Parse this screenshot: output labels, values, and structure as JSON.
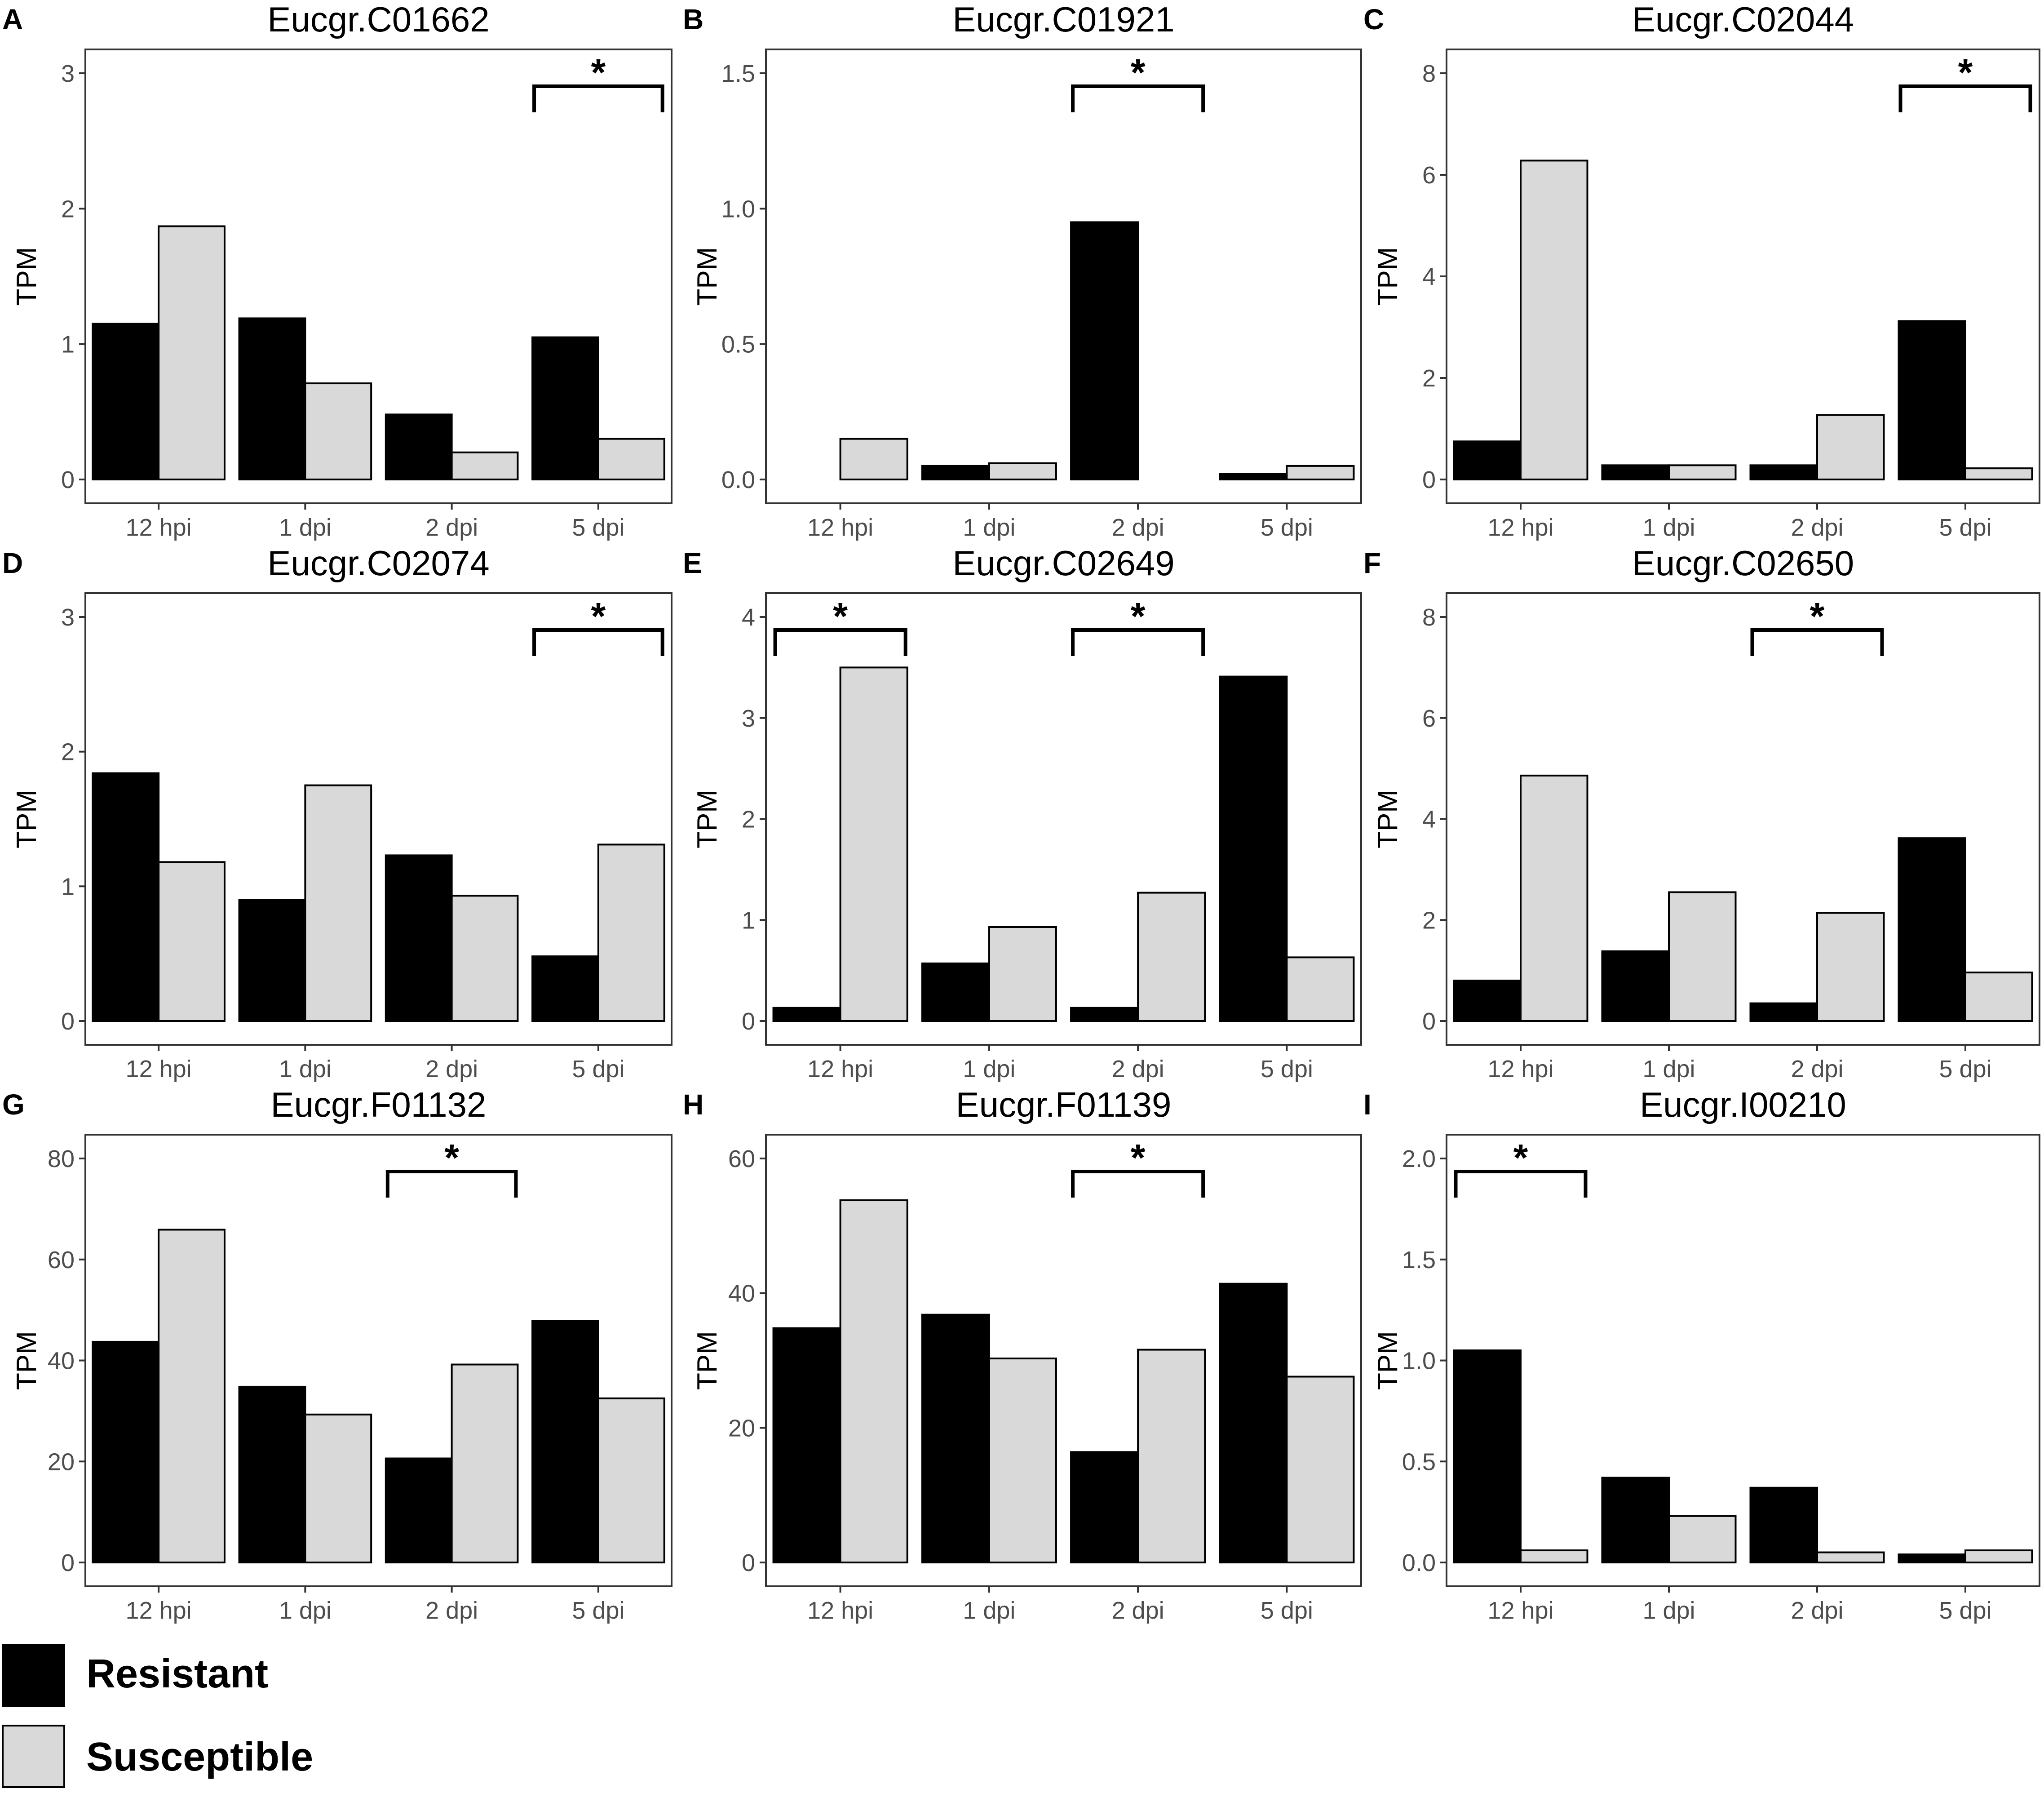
{
  "legend": {
    "items": [
      {
        "label": "Resistant",
        "color": "#000000"
      },
      {
        "label": "Susceptible",
        "color": "#d9d9d9"
      }
    ]
  },
  "chart_data": [
    {
      "panel": "A",
      "type": "bar",
      "title": "Eucgr.C01662",
      "ylabel": "TPM",
      "categories": [
        "12 hpi",
        "1 dpi",
        "2 dpi",
        "5 dpi"
      ],
      "ylim": [
        0,
        3
      ],
      "yticks": [
        "0",
        "1",
        "2",
        "3"
      ],
      "series": [
        {
          "name": "Resistant",
          "values": [
            1.15,
            1.19,
            0.48,
            1.05
          ]
        },
        {
          "name": "Susceptible",
          "values": [
            1.87,
            0.71,
            0.2,
            0.3
          ]
        }
      ],
      "significant": [
        3
      ],
      "significance_label": "*"
    },
    {
      "panel": "B",
      "type": "bar",
      "title": "Eucgr.C01921",
      "ylabel": "TPM",
      "categories": [
        "12 hpi",
        "1 dpi",
        "2 dpi",
        "5 dpi"
      ],
      "ylim": [
        0,
        1.5
      ],
      "yticks": [
        "0.0",
        "0.5",
        "1.0",
        "1.5"
      ],
      "series": [
        {
          "name": "Resistant",
          "values": [
            0.0,
            0.05,
            0.95,
            0.02
          ]
        },
        {
          "name": "Susceptible",
          "values": [
            0.15,
            0.06,
            0.0,
            0.05
          ]
        }
      ],
      "significant": [
        2
      ],
      "significance_label": "*"
    },
    {
      "panel": "C",
      "type": "bar",
      "title": "Eucgr.C02044",
      "ylabel": "TPM",
      "categories": [
        "12 hpi",
        "1 dpi",
        "2 dpi",
        "5 dpi"
      ],
      "ylim": [
        0,
        8
      ],
      "yticks": [
        "0",
        "2",
        "4",
        "6",
        "8"
      ],
      "series": [
        {
          "name": "Resistant",
          "values": [
            0.75,
            0.28,
            0.28,
            3.12
          ]
        },
        {
          "name": "Susceptible",
          "values": [
            6.28,
            0.28,
            1.27,
            0.22
          ]
        }
      ],
      "significant": [
        3
      ],
      "significance_label": "*"
    },
    {
      "panel": "D",
      "type": "bar",
      "title": "Eucgr.C02074",
      "ylabel": "TPM",
      "categories": [
        "12 hpi",
        "1 dpi",
        "2 dpi",
        "5 dpi"
      ],
      "ylim": [
        0,
        3
      ],
      "yticks": [
        "0",
        "1",
        "2",
        "3"
      ],
      "series": [
        {
          "name": "Resistant",
          "values": [
            1.84,
            0.9,
            1.23,
            0.48
          ]
        },
        {
          "name": "Susceptible",
          "values": [
            1.18,
            1.75,
            0.93,
            1.31
          ]
        }
      ],
      "significant": [
        3
      ],
      "significance_label": "*"
    },
    {
      "panel": "E",
      "type": "bar",
      "title": "Eucgr.C02649",
      "ylabel": "TPM",
      "categories": [
        "12 hpi",
        "1 dpi",
        "2 dpi",
        "5 dpi"
      ],
      "ylim": [
        0,
        4
      ],
      "yticks": [
        "0",
        "1",
        "2",
        "3",
        "4"
      ],
      "series": [
        {
          "name": "Resistant",
          "values": [
            0.13,
            0.57,
            0.13,
            3.41
          ]
        },
        {
          "name": "Susceptible",
          "values": [
            3.5,
            0.93,
            1.27,
            0.63
          ]
        }
      ],
      "significant": [
        0,
        2
      ],
      "significance_label": "*"
    },
    {
      "panel": "F",
      "type": "bar",
      "title": "Eucgr.C02650",
      "ylabel": "TPM",
      "categories": [
        "12 hpi",
        "1 dpi",
        "2 dpi",
        "5 dpi"
      ],
      "ylim": [
        0,
        8
      ],
      "yticks": [
        "0",
        "2",
        "4",
        "6",
        "8"
      ],
      "series": [
        {
          "name": "Resistant",
          "values": [
            0.8,
            1.38,
            0.35,
            3.62
          ]
        },
        {
          "name": "Susceptible",
          "values": [
            4.86,
            2.55,
            2.14,
            0.96
          ]
        }
      ],
      "significant": [
        2
      ],
      "significance_label": "*"
    },
    {
      "panel": "G",
      "type": "bar",
      "title": "Eucgr.F01132",
      "ylabel": "TPM",
      "categories": [
        "12 hpi",
        "1 dpi",
        "2 dpi",
        "5 dpi"
      ],
      "ylim": [
        0,
        80
      ],
      "yticks": [
        "0",
        "20",
        "40",
        "60",
        "80"
      ],
      "series": [
        {
          "name": "Resistant",
          "values": [
            43.7,
            34.8,
            20.6,
            47.8
          ]
        },
        {
          "name": "Susceptible",
          "values": [
            65.9,
            29.3,
            39.2,
            32.5
          ]
        }
      ],
      "significant": [
        2
      ],
      "significance_label": "*"
    },
    {
      "panel": "H",
      "type": "bar",
      "title": "Eucgr.F01139",
      "ylabel": "TPM",
      "categories": [
        "12 hpi",
        "1 dpi",
        "2 dpi",
        "5 dpi"
      ],
      "ylim": [
        0,
        60
      ],
      "yticks": [
        "0",
        "20",
        "40",
        "60"
      ],
      "series": [
        {
          "name": "Resistant",
          "values": [
            34.8,
            36.8,
            16.4,
            41.4
          ]
        },
        {
          "name": "Susceptible",
          "values": [
            53.8,
            30.3,
            31.6,
            27.6
          ]
        }
      ],
      "significant": [
        2
      ],
      "significance_label": "*"
    },
    {
      "panel": "I",
      "type": "bar",
      "title": "Eucgr.I00210",
      "ylabel": "TPM",
      "categories": [
        "12 hpi",
        "1 dpi",
        "2 dpi",
        "5 dpi"
      ],
      "ylim": [
        0,
        2
      ],
      "yticks": [
        "0.0",
        "0.5",
        "1.0",
        "1.5",
        "2.0"
      ],
      "series": [
        {
          "name": "Resistant",
          "values": [
            1.05,
            0.42,
            0.37,
            0.04
          ]
        },
        {
          "name": "Susceptible",
          "values": [
            0.06,
            0.23,
            0.05,
            0.06
          ]
        }
      ],
      "significant": [
        0
      ],
      "significance_label": "*"
    }
  ]
}
